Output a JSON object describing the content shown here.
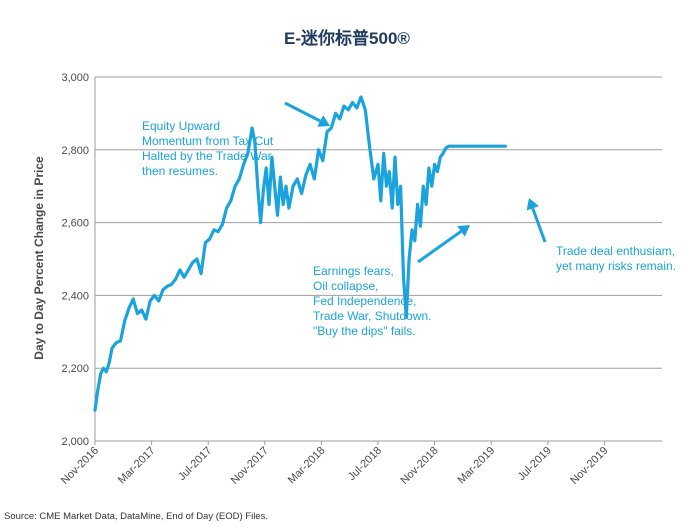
{
  "chart_data": {
    "type": "line",
    "title": "E-迷你标普500®",
    "ylabel": "Day to Day Percent Change in Price",
    "xlabel": "",
    "ylim": [
      2000,
      3000
    ],
    "yticks": [
      2000,
      2200,
      2400,
      2600,
      2800,
      3000
    ],
    "ytick_labels": [
      "2,000",
      "2,200",
      "2,400",
      "2,600",
      "2,800",
      "3,000"
    ],
    "xticks": [
      "Nov-2016",
      "Mar-2017",
      "Jul-2017",
      "Nov-2017",
      "Mar-2018",
      "Jul-2018",
      "Nov-2018",
      "Mar-2019",
      "Jul-2019",
      "Nov-2019"
    ],
    "grid": true,
    "series": [
      {
        "name": "E-mini S&P 500",
        "color": "#1aa3dc",
        "x": [
          0,
          0.2,
          0.4,
          0.6,
          0.8,
          1.0,
          1.2,
          1.5,
          1.8,
          2.1,
          2.4,
          2.7,
          3.0,
          3.3,
          3.6,
          3.9,
          4.2,
          4.5,
          4.8,
          5.1,
          5.4,
          5.7,
          6.0,
          6.3,
          6.6,
          6.9,
          7.2,
          7.5,
          7.8,
          8.1,
          8.4,
          8.7,
          9.0,
          9.3,
          9.6,
          9.9,
          10.2,
          10.5,
          10.8,
          11.1,
          11.3,
          11.5,
          11.7,
          11.9,
          12.1,
          12.3,
          12.5,
          12.7,
          12.9,
          13.1,
          13.3,
          13.5,
          13.7,
          14.0,
          14.3,
          14.6,
          14.9,
          15.2,
          15.5,
          15.8,
          16.1,
          16.4,
          16.7,
          17.0,
          17.3,
          17.6,
          17.9,
          18.2,
          18.5,
          18.8,
          19.1,
          19.4,
          19.7,
          20.0,
          20.2,
          20.4,
          20.6,
          20.8,
          21.0,
          21.2,
          21.4,
          21.6,
          21.8,
          22.0,
          22.2,
          22.4,
          22.6,
          22.8,
          23.0,
          23.2,
          23.4,
          23.6,
          23.8,
          24.0,
          24.2,
          24.4,
          24.6,
          24.8,
          25.0,
          25.3,
          25.6,
          25.9,
          26.2,
          26.5,
          26.8,
          27.1,
          27.4,
          27.7,
          28.0,
          28.3,
          28.6,
          28.8,
          29.0
        ],
        "values": [
          2085,
          2140,
          2185,
          2200,
          2190,
          2215,
          2255,
          2270,
          2275,
          2330,
          2365,
          2390,
          2350,
          2360,
          2335,
          2385,
          2400,
          2385,
          2415,
          2425,
          2430,
          2445,
          2470,
          2450,
          2470,
          2490,
          2500,
          2460,
          2545,
          2555,
          2580,
          2575,
          2595,
          2640,
          2660,
          2700,
          2720,
          2760,
          2790,
          2860,
          2820,
          2700,
          2600,
          2690,
          2750,
          2650,
          2780,
          2700,
          2620,
          2725,
          2650,
          2700,
          2640,
          2700,
          2720,
          2680,
          2730,
          2760,
          2720,
          2800,
          2770,
          2850,
          2860,
          2900,
          2885,
          2920,
          2910,
          2930,
          2915,
          2945,
          2910,
          2810,
          2720,
          2760,
          2660,
          2790,
          2700,
          2740,
          2640,
          2780,
          2650,
          2700,
          2450,
          2340,
          2500,
          2580,
          2550,
          2650,
          2590,
          2700,
          2650,
          2750,
          2700,
          2760,
          2740,
          2780,
          2790,
          2805,
          2810,
          2810,
          2810,
          2810,
          2810,
          2810,
          2810,
          2810,
          2810,
          2810,
          2810,
          2810,
          2810,
          2810,
          2810
        ],
        "x_units": "months since Nov-2016",
        "note": "values estimated from gridlines"
      }
    ],
    "annotations": [
      {
        "lines": [
          "Equity Upward",
          "Momentum from Tax Cut",
          "Halted by the Trade War,",
          "then resumes."
        ]
      },
      {
        "lines": [
          "Earnings fears,",
          "Oil collapse,",
          "Fed Independence,",
          "Trade War, Shutdown.",
          "\"Buy the dips\" fails."
        ]
      },
      {
        "lines": [
          "Trade deal enthusiam,",
          "yet many risks remain."
        ]
      }
    ],
    "source": "Source:  CME Market Data, DataMine, End of Day (EOD) Files."
  }
}
